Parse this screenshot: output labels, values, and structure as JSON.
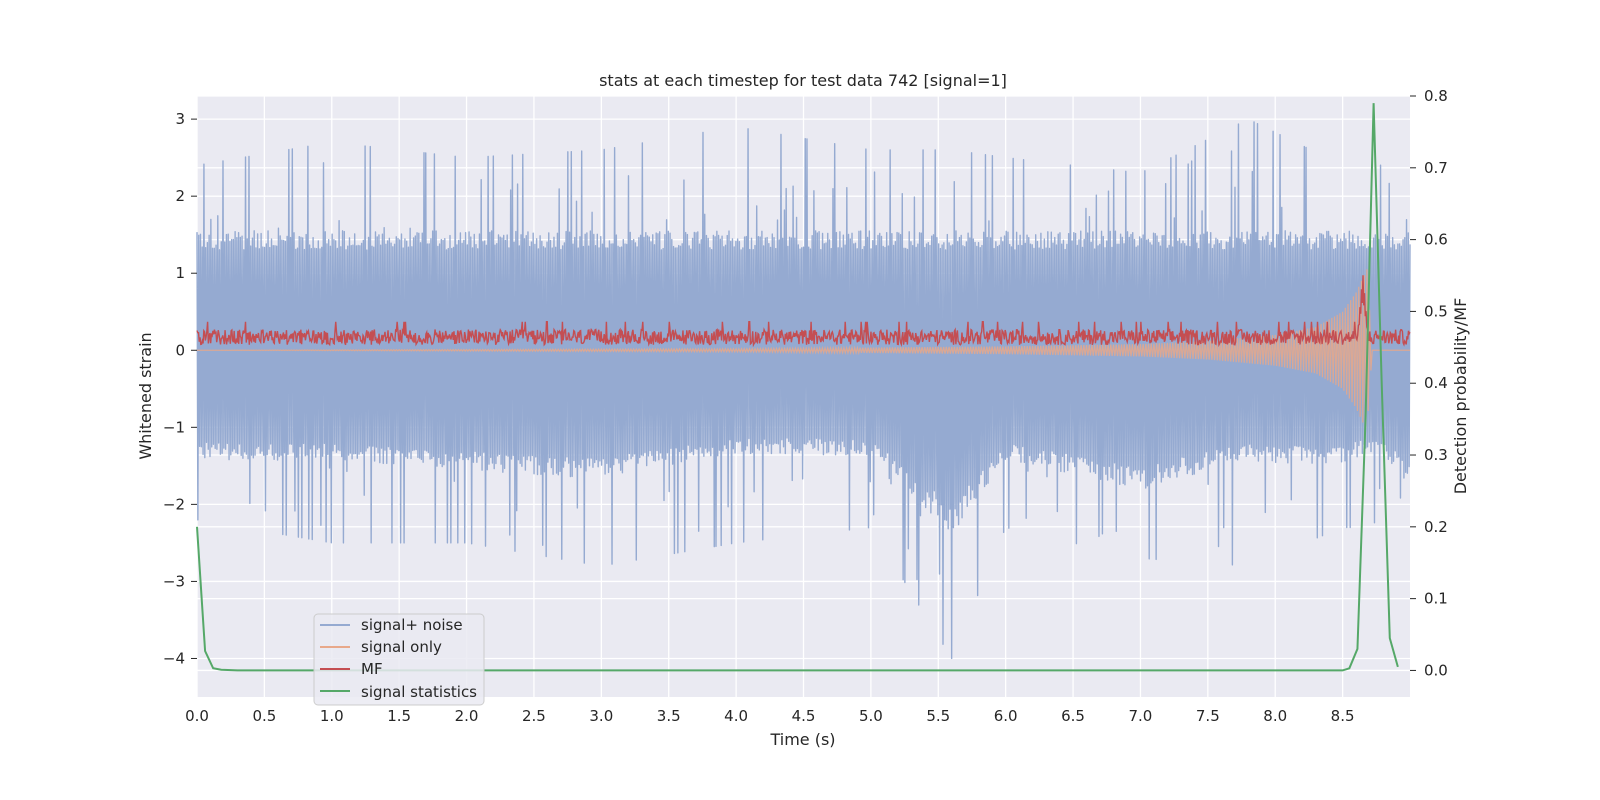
{
  "chart_data": {
    "type": "line",
    "title": "stats at each timestep for test data 742 [signal=1]",
    "xlabel": "Time (s)",
    "ylabel": "Whitened strain",
    "ylabel_right": "Detection probability/MF",
    "xlim": [
      0.0,
      9.0
    ],
    "ylim": [
      -4.5,
      3.3
    ],
    "ylim_right": [
      -0.037,
      0.8
    ],
    "xticks": [
      "0.0",
      "0.5",
      "1.0",
      "1.5",
      "2.0",
      "2.5",
      "3.0",
      "3.5",
      "4.0",
      "4.5",
      "5.0",
      "5.5",
      "6.0",
      "6.5",
      "7.0",
      "7.5",
      "8.0",
      "8.5"
    ],
    "yticks": [
      "3",
      "2",
      "1",
      "0",
      "−1",
      "−2",
      "−3",
      "−4"
    ],
    "yticks_right": [
      "0.8",
      "0.7",
      "0.6",
      "0.5",
      "0.4",
      "0.3",
      "0.2",
      "0.1",
      "0.0"
    ],
    "grid": true,
    "legend_position": "lower-left",
    "colors": {
      "signal_noise": "#95aad1",
      "signal_only": "#e8a88a",
      "mf": "#c44e52",
      "stat": "#55a868",
      "axes_bg": "#eaeaf2",
      "grid": "#ffffff"
    },
    "series": [
      {
        "name": "signal+ noise",
        "axis": "left",
        "envelope": {
          "x": [
            0.0,
            1.0,
            2.0,
            3.0,
            4.0,
            5.0,
            5.6,
            6.0,
            7.0,
            7.8,
            8.5,
            8.7,
            9.0
          ],
          "upper": [
            2.4,
            2.7,
            2.5,
            2.6,
            2.9,
            2.6,
            2.6,
            2.5,
            2.3,
            3.0,
            2.4,
            2.7,
            1.6
          ],
          "lower": [
            -2.2,
            -2.5,
            -2.5,
            -2.8,
            -2.5,
            -2.3,
            -4.0,
            -2.3,
            -2.7,
            -2.8,
            -2.3,
            -2.3,
            -1.8
          ]
        }
      },
      {
        "name": "signal only",
        "axis": "left",
        "envelope": {
          "x": [
            0.0,
            4.0,
            6.0,
            7.0,
            7.5,
            8.0,
            8.3,
            8.5,
            8.6,
            8.68,
            8.72,
            9.0
          ],
          "upper": [
            0.0,
            0.02,
            0.05,
            0.08,
            0.12,
            0.2,
            0.3,
            0.5,
            0.75,
            1.05,
            0.0,
            0.0
          ],
          "lower": [
            0.0,
            -0.02,
            -0.05,
            -0.08,
            -0.12,
            -0.2,
            -0.3,
            -0.5,
            -0.75,
            -1.05,
            0.0,
            0.0
          ]
        }
      },
      {
        "name": "MF",
        "axis": "left",
        "band": {
          "center": 0.17,
          "half_width": 0.1,
          "peak_x": 8.65,
          "peak_y": 1.0
        }
      },
      {
        "name": "signal statistics",
        "axis": "right",
        "x": [
          0.0,
          0.06,
          0.12,
          0.18,
          0.3,
          0.5,
          1.0,
          2.0,
          4.0,
          6.0,
          8.0,
          8.5,
          8.55,
          8.61,
          8.67,
          8.73,
          8.79,
          8.85,
          8.91
        ],
        "y": [
          0.2,
          0.027,
          0.003,
          0.001,
          0.0,
          0.0,
          0.0,
          0.0,
          0.0,
          0.0,
          0.0,
          0.0,
          0.003,
          0.03,
          0.35,
          0.79,
          0.4,
          0.045,
          0.005
        ]
      }
    ]
  }
}
